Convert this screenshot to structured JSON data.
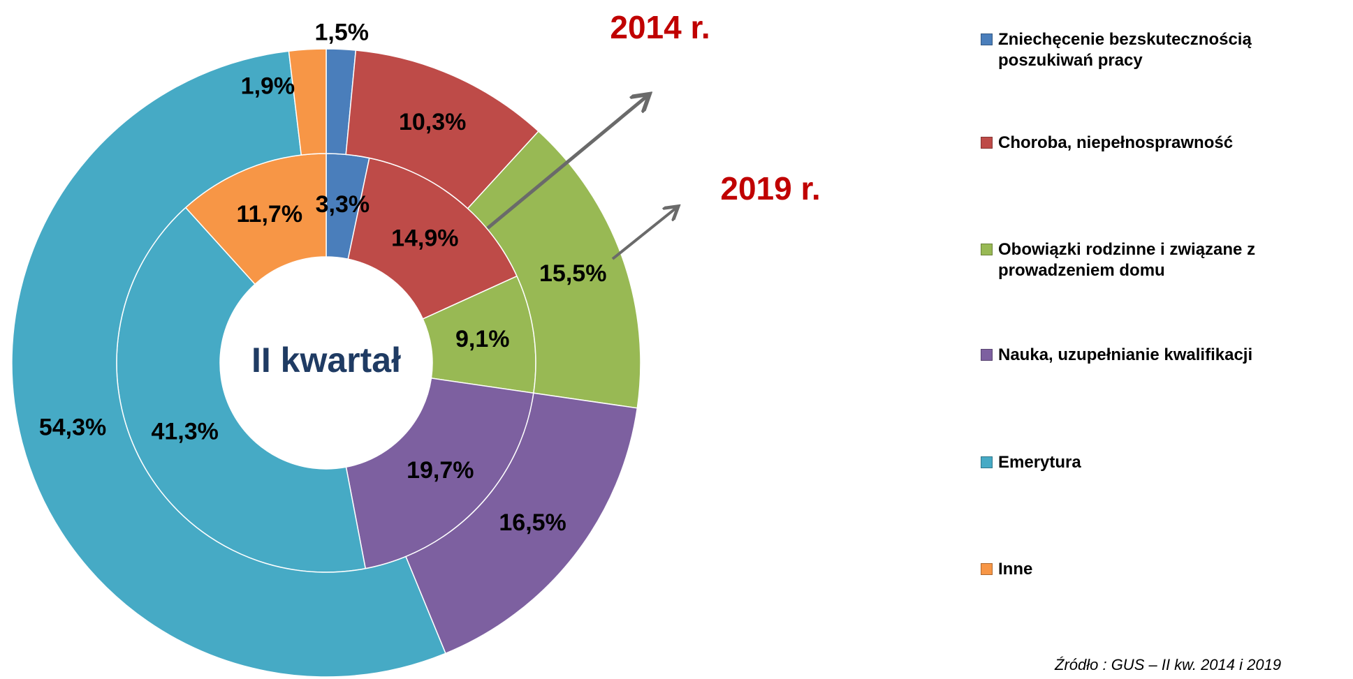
{
  "chart_data": {
    "type": "donut",
    "center_label": "II kwartał",
    "categories": [
      "Zniechęcenie bezskutecznością poszukiwań pracy",
      "Choroba, niepełnosprawność",
      "Obowiązki rodzinne i związane z prowadzeniem domu",
      "Nauka, uzupełnianie kwalifikacji",
      "Emerytura",
      "Inne"
    ],
    "colors": [
      "#4a7ebb",
      "#be4b48",
      "#98b954",
      "#7d60a0",
      "#46aac5",
      "#f79646"
    ],
    "series": [
      {
        "name": "2014 r.",
        "values": [
          3.3,
          14.9,
          9.1,
          19.7,
          41.3,
          11.7
        ],
        "value_labels": [
          "3,3%",
          "14,9%",
          "9,1%",
          "19,7%",
          "41,3%",
          "11,7%"
        ]
      },
      {
        "name": "2019 r.",
        "values": [
          1.5,
          10.3,
          15.5,
          16.5,
          54.3,
          1.9
        ],
        "value_labels": [
          "1,5%",
          "10,3%",
          "15,5%",
          "16,5%",
          "54,3%",
          "1,9%"
        ]
      }
    ],
    "source": "Źródło : GUS – II kw. 2014 i 2019"
  }
}
